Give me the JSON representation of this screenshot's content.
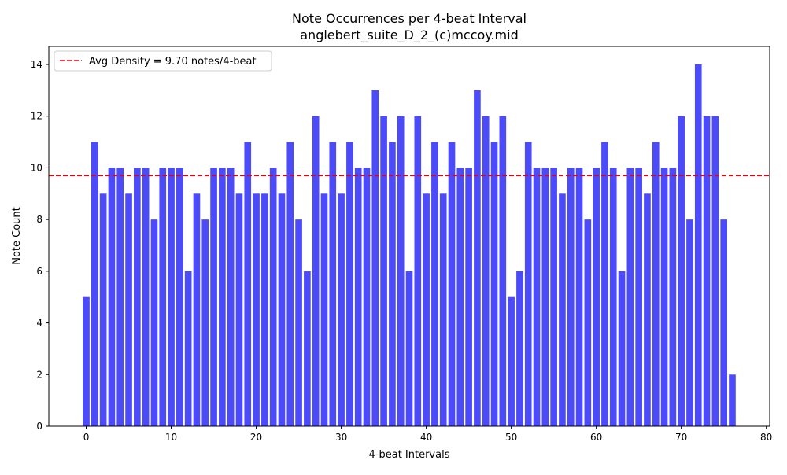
{
  "chart_data": {
    "type": "bar",
    "title_line1": "Note Occurrences per 4-beat Interval",
    "title_line2": "anglebert_suite_D_2_(c)mccoy.mid",
    "xlabel": "4-beat Intervals",
    "ylabel": "Note Count",
    "xlim": [
      -4.4,
      80.4
    ],
    "ylim": [
      0,
      14.7
    ],
    "xticks": [
      0,
      10,
      20,
      30,
      40,
      50,
      60,
      70,
      80
    ],
    "yticks": [
      0,
      2,
      4,
      6,
      8,
      10,
      12,
      14
    ],
    "bar_color": "#4b4bfa",
    "x": [
      0,
      1,
      2,
      3,
      4,
      5,
      6,
      7,
      8,
      9,
      10,
      11,
      12,
      13,
      14,
      15,
      16,
      17,
      18,
      19,
      20,
      21,
      22,
      23,
      24,
      25,
      26,
      27,
      28,
      29,
      30,
      31,
      32,
      33,
      34,
      35,
      36,
      37,
      38,
      39,
      40,
      41,
      42,
      43,
      44,
      45,
      46,
      47,
      48,
      49,
      50,
      51,
      52,
      53,
      54,
      55,
      56,
      57,
      58,
      59,
      60,
      61,
      62,
      63,
      64,
      65,
      66,
      67,
      68,
      69,
      70,
      71,
      72,
      73,
      74,
      75,
      76
    ],
    "values": [
      5,
      11,
      9,
      10,
      10,
      9,
      10,
      10,
      8,
      10,
      10,
      10,
      6,
      9,
      8,
      10,
      10,
      10,
      9,
      11,
      9,
      9,
      10,
      9,
      11,
      8,
      6,
      12,
      9,
      11,
      9,
      11,
      10,
      10,
      13,
      12,
      11,
      12,
      6,
      12,
      9,
      11,
      9,
      11,
      10,
      10,
      13,
      12,
      11,
      12,
      5,
      6,
      11,
      10,
      10,
      10,
      9,
      10,
      10,
      8,
      10,
      11,
      10,
      6,
      10,
      10,
      9,
      11,
      10,
      10,
      12,
      8,
      14,
      12,
      12,
      8,
      2
    ],
    "reference_line": {
      "value": 9.7,
      "color": "#e8000b",
      "style": "dashed",
      "label": "Avg Density = 9.70 notes/4-beat"
    },
    "legend_position": "top-left",
    "grid": false
  }
}
